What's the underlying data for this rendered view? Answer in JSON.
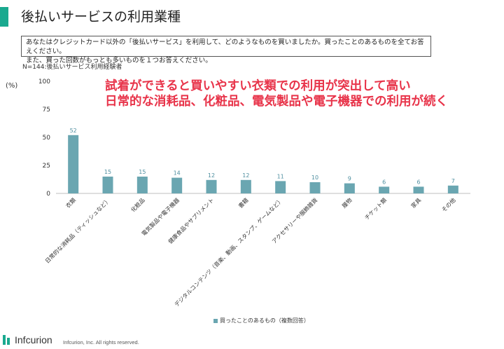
{
  "header": {
    "title": "後払いサービスの利用業種",
    "question_line1": "あなたはクレジットカード以外の「後払いサービス」を利用して、どのようなものを買いましたか。買ったことのあるものを全てお答えください。",
    "question_line2": "また、買った回数がもっとも多いものを１つお答えください。",
    "sample_note": "N=144:後払いサービス利用経験者"
  },
  "headline": {
    "line1": "試着ができると買いやすい衣類での利用が突出して高い",
    "line2": "日常的な消耗品、化粧品、電気製品や電子機器での利用が続く"
  },
  "footer": {
    "logo_text": "Infcurion",
    "copyright": "Infcurion, Inc.  All rights reserved."
  },
  "colors": {
    "bar": "#6aa6b1",
    "accent": "#1aa98f",
    "headline": "#e8344a"
  },
  "chart_data": {
    "type": "bar",
    "y_unit": "(%)",
    "ylim": [
      0,
      100
    ],
    "yticks": [
      0,
      25,
      50,
      75,
      100
    ],
    "categories": [
      "衣類",
      "日常的な消耗品（ティッシュなど）",
      "化粧品",
      "電気製品や電子機器",
      "健康食品やサプリメント",
      "書籍",
      "デジタルコンテンツ（音楽、動画、スタンプ、ゲームなど）",
      "アクセサリーや服飾雑貨",
      "履物",
      "チケット類",
      "家具",
      "その他"
    ],
    "series": [
      {
        "name": "買ったことのあるもの（複数回答）",
        "values": [
          52,
          15,
          15,
          14,
          12,
          12,
          11,
          10,
          9,
          6,
          6,
          7
        ]
      }
    ],
    "grid": false,
    "legend_position": "bottom"
  }
}
